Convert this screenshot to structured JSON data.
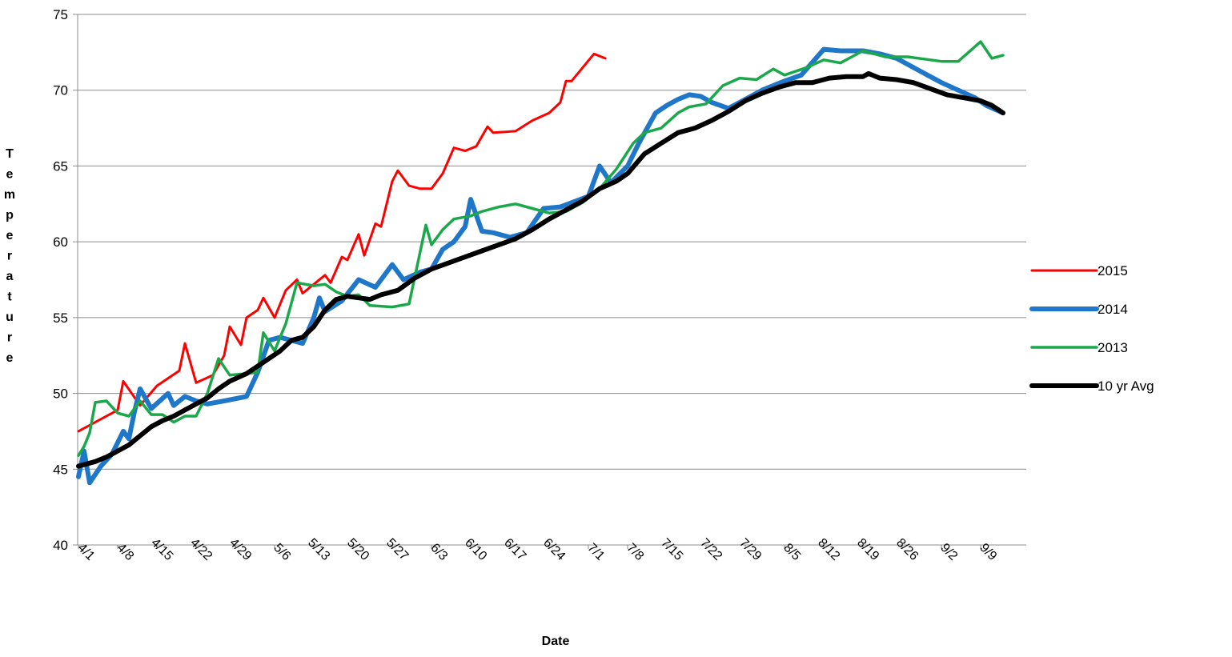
{
  "chart_data": {
    "type": "line",
    "title": "",
    "xlabel": "Date",
    "ylabel": "Temperature",
    "ylim": [
      40,
      75
    ],
    "yticks": [
      40,
      45,
      50,
      55,
      60,
      65,
      70,
      75
    ],
    "x_tick_labels": [
      "4/1",
      "4/8",
      "4/15",
      "4/22",
      "4/29",
      "5/6",
      "5/13",
      "5/20",
      "5/27",
      "6/3",
      "6/10",
      "6/17",
      "6/24",
      "7/1",
      "7/8",
      "7/15",
      "7/22",
      "7/29",
      "8/5",
      "8/12",
      "8/19",
      "8/26",
      "9/2",
      "9/9"
    ],
    "x_start_label": "4/1",
    "x_end_label": "9/13",
    "grid": "horizontal",
    "legend_position": "right",
    "series": [
      {
        "name": "2015",
        "color": "#ff0000",
        "points": [
          [
            "4/1",
            47.5
          ],
          [
            "4/8",
            48.9
          ],
          [
            "4/9",
            50.8
          ],
          [
            "4/12",
            49.2
          ],
          [
            "4/15",
            50.5
          ],
          [
            "4/19",
            51.5
          ],
          [
            "4/20",
            53.3
          ],
          [
            "4/22",
            50.7
          ],
          [
            "4/25",
            51.2
          ],
          [
            "4/27",
            52.5
          ],
          [
            "4/28",
            54.4
          ],
          [
            "4/30",
            53.2
          ],
          [
            "5/1",
            55.0
          ],
          [
            "5/3",
            55.5
          ],
          [
            "5/4",
            56.3
          ],
          [
            "5/6",
            55.0
          ],
          [
            "5/8",
            56.8
          ],
          [
            "5/10",
            57.5
          ],
          [
            "5/11",
            56.6
          ],
          [
            "5/13",
            57.2
          ],
          [
            "5/15",
            57.8
          ],
          [
            "5/16",
            57.3
          ],
          [
            "5/18",
            59.0
          ],
          [
            "5/19",
            58.8
          ],
          [
            "5/21",
            60.5
          ],
          [
            "5/22",
            59.1
          ],
          [
            "5/24",
            61.2
          ],
          [
            "5/25",
            61.0
          ],
          [
            "5/27",
            64.0
          ],
          [
            "5/28",
            64.7
          ],
          [
            "5/30",
            63.7
          ],
          [
            "6/1",
            63.5
          ],
          [
            "6/3",
            63.5
          ],
          [
            "6/5",
            64.5
          ],
          [
            "6/7",
            66.2
          ],
          [
            "6/9",
            66.0
          ],
          [
            "6/11",
            66.3
          ],
          [
            "6/13",
            67.6
          ],
          [
            "6/14",
            67.2
          ],
          [
            "6/18",
            67.3
          ],
          [
            "6/21",
            68.0
          ],
          [
            "6/24",
            68.5
          ],
          [
            "6/26",
            69.2
          ],
          [
            "6/27",
            70.6
          ],
          [
            "6/28",
            70.6
          ],
          [
            "6/30",
            71.5
          ],
          [
            "7/2",
            72.4
          ],
          [
            "7/4",
            72.1
          ]
        ]
      },
      {
        "name": "2014",
        "color": "#1f77c9",
        "points": [
          [
            "4/1",
            44.5
          ],
          [
            "4/2",
            46.2
          ],
          [
            "4/3",
            44.1
          ],
          [
            "4/5",
            45.2
          ],
          [
            "4/7",
            46.0
          ],
          [
            "4/9",
            47.5
          ],
          [
            "4/10",
            47.0
          ],
          [
            "4/11",
            48.8
          ],
          [
            "4/12",
            50.3
          ],
          [
            "4/14",
            49.0
          ],
          [
            "4/17",
            50.0
          ],
          [
            "4/18",
            49.2
          ],
          [
            "4/20",
            49.8
          ],
          [
            "4/22",
            49.5
          ],
          [
            "4/24",
            49.3
          ],
          [
            "4/27",
            49.5
          ],
          [
            "5/1",
            49.8
          ],
          [
            "5/3",
            51.4
          ],
          [
            "5/5",
            53.5
          ],
          [
            "5/7",
            53.7
          ],
          [
            "5/9",
            53.5
          ],
          [
            "5/11",
            53.3
          ],
          [
            "5/13",
            55.0
          ],
          [
            "5/14",
            56.3
          ],
          [
            "5/15",
            55.4
          ],
          [
            "5/18",
            56.1
          ],
          [
            "5/21",
            57.5
          ],
          [
            "5/24",
            57.0
          ],
          [
            "5/27",
            58.5
          ],
          [
            "5/29",
            57.5
          ],
          [
            "6/1",
            58.0
          ],
          [
            "6/3",
            58.2
          ],
          [
            "6/5",
            59.5
          ],
          [
            "6/7",
            60.0
          ],
          [
            "6/9",
            61.0
          ],
          [
            "6/10",
            62.8
          ],
          [
            "6/12",
            60.7
          ],
          [
            "6/14",
            60.6
          ],
          [
            "6/17",
            60.3
          ],
          [
            "6/20",
            60.6
          ],
          [
            "6/23",
            62.2
          ],
          [
            "6/26",
            62.3
          ],
          [
            "7/1",
            63.0
          ],
          [
            "7/3",
            65.0
          ],
          [
            "7/5",
            63.9
          ],
          [
            "7/8",
            65.0
          ],
          [
            "7/10",
            66.5
          ],
          [
            "7/13",
            68.5
          ],
          [
            "7/15",
            69.0
          ],
          [
            "7/17",
            69.4
          ],
          [
            "7/19",
            69.7
          ],
          [
            "7/21",
            69.6
          ],
          [
            "7/23",
            69.2
          ],
          [
            "7/26",
            68.8
          ],
          [
            "7/29",
            69.4
          ],
          [
            "8/1",
            70.0
          ],
          [
            "8/5",
            70.6
          ],
          [
            "8/8",
            71.0
          ],
          [
            "8/12",
            72.7
          ],
          [
            "8/15",
            72.6
          ],
          [
            "8/19",
            72.6
          ],
          [
            "8/22",
            72.4
          ],
          [
            "8/25",
            72.1
          ],
          [
            "8/29",
            71.3
          ],
          [
            "9/2",
            70.5
          ],
          [
            "9/5",
            70.0
          ],
          [
            "9/8",
            69.5
          ],
          [
            "9/10",
            69.0
          ],
          [
            "9/13",
            68.5
          ]
        ]
      },
      {
        "name": "2013",
        "color": "#1aa84a",
        "points": [
          [
            "4/1",
            45.9
          ],
          [
            "4/2",
            46.5
          ],
          [
            "4/3",
            47.4
          ],
          [
            "4/4",
            49.4
          ],
          [
            "4/6",
            49.5
          ],
          [
            "4/8",
            48.7
          ],
          [
            "4/10",
            48.5
          ],
          [
            "4/12",
            49.5
          ],
          [
            "4/14",
            48.6
          ],
          [
            "4/16",
            48.6
          ],
          [
            "4/18",
            48.1
          ],
          [
            "4/20",
            48.5
          ],
          [
            "4/22",
            48.5
          ],
          [
            "4/24",
            50.0
          ],
          [
            "4/26",
            52.3
          ],
          [
            "4/28",
            51.2
          ],
          [
            "5/1",
            51.3
          ],
          [
            "5/3",
            51.4
          ],
          [
            "5/4",
            54.0
          ],
          [
            "5/6",
            52.8
          ],
          [
            "5/8",
            54.6
          ],
          [
            "5/10",
            57.3
          ],
          [
            "5/13",
            57.1
          ],
          [
            "5/15",
            57.2
          ],
          [
            "5/17",
            56.7
          ],
          [
            "5/19",
            56.4
          ],
          [
            "5/21",
            56.5
          ],
          [
            "5/23",
            55.8
          ],
          [
            "5/27",
            55.7
          ],
          [
            "5/30",
            55.9
          ],
          [
            "6/2",
            61.1
          ],
          [
            "6/3",
            59.8
          ],
          [
            "6/5",
            60.8
          ],
          [
            "6/7",
            61.5
          ],
          [
            "6/10",
            61.7
          ],
          [
            "6/12",
            62.0
          ],
          [
            "6/15",
            62.3
          ],
          [
            "6/18",
            62.5
          ],
          [
            "6/21",
            62.2
          ],
          [
            "6/24",
            61.9
          ],
          [
            "6/27",
            62.0
          ],
          [
            "6/30",
            62.6
          ],
          [
            "7/3",
            63.5
          ],
          [
            "7/6",
            64.8
          ],
          [
            "7/9",
            66.5
          ],
          [
            "7/11",
            67.2
          ],
          [
            "7/14",
            67.5
          ],
          [
            "7/17",
            68.5
          ],
          [
            "7/19",
            68.9
          ],
          [
            "7/22",
            69.1
          ],
          [
            "7/25",
            70.3
          ],
          [
            "7/28",
            70.8
          ],
          [
            "7/31",
            70.7
          ],
          [
            "8/3",
            71.4
          ],
          [
            "8/5",
            71.0
          ],
          [
            "8/9",
            71.5
          ],
          [
            "8/12",
            72.0
          ],
          [
            "8/15",
            71.8
          ],
          [
            "8/19",
            72.6
          ],
          [
            "8/23",
            72.2
          ],
          [
            "8/27",
            72.2
          ],
          [
            "8/31",
            72.0
          ],
          [
            "9/2",
            71.9
          ],
          [
            "9/5",
            71.9
          ],
          [
            "9/9",
            73.2
          ],
          [
            "9/11",
            72.1
          ],
          [
            "9/13",
            72.3
          ]
        ]
      },
      {
        "name": "10 yr Avg",
        "color": "#000000",
        "points": [
          [
            "4/1",
            45.2
          ],
          [
            "4/2",
            45.3
          ],
          [
            "4/4",
            45.5
          ],
          [
            "4/6",
            45.8
          ],
          [
            "4/8",
            46.2
          ],
          [
            "4/10",
            46.6
          ],
          [
            "4/12",
            47.2
          ],
          [
            "4/14",
            47.8
          ],
          [
            "4/16",
            48.2
          ],
          [
            "4/18",
            48.5
          ],
          [
            "4/20",
            48.9
          ],
          [
            "4/22",
            49.3
          ],
          [
            "4/24",
            49.7
          ],
          [
            "4/26",
            50.3
          ],
          [
            "4/28",
            50.8
          ],
          [
            "5/1",
            51.3
          ],
          [
            "5/3",
            51.8
          ],
          [
            "5/5",
            52.3
          ],
          [
            "5/7",
            52.8
          ],
          [
            "5/9",
            53.5
          ],
          [
            "5/11",
            53.7
          ],
          [
            "5/13",
            54.4
          ],
          [
            "5/15",
            55.5
          ],
          [
            "5/17",
            56.2
          ],
          [
            "5/19",
            56.4
          ],
          [
            "5/21",
            56.3
          ],
          [
            "5/23",
            56.2
          ],
          [
            "5/25",
            56.5
          ],
          [
            "5/28",
            56.8
          ],
          [
            "5/31",
            57.6
          ],
          [
            "6/3",
            58.2
          ],
          [
            "6/6",
            58.6
          ],
          [
            "6/9",
            59.0
          ],
          [
            "6/12",
            59.4
          ],
          [
            "6/15",
            59.8
          ],
          [
            "6/18",
            60.2
          ],
          [
            "6/21",
            60.8
          ],
          [
            "6/24",
            61.5
          ],
          [
            "6/27",
            62.1
          ],
          [
            "6/30",
            62.7
          ],
          [
            "7/3",
            63.5
          ],
          [
            "7/6",
            64.0
          ],
          [
            "7/8",
            64.5
          ],
          [
            "7/11",
            65.8
          ],
          [
            "7/14",
            66.5
          ],
          [
            "7/17",
            67.2
          ],
          [
            "7/20",
            67.5
          ],
          [
            "7/23",
            68.0
          ],
          [
            "7/26",
            68.6
          ],
          [
            "7/29",
            69.3
          ],
          [
            "8/1",
            69.8
          ],
          [
            "8/4",
            70.2
          ],
          [
            "8/7",
            70.5
          ],
          [
            "8/10",
            70.5
          ],
          [
            "8/13",
            70.8
          ],
          [
            "8/16",
            70.9
          ],
          [
            "8/19",
            70.9
          ],
          [
            "8/20",
            71.1
          ],
          [
            "8/22",
            70.8
          ],
          [
            "8/25",
            70.7
          ],
          [
            "8/28",
            70.5
          ],
          [
            "8/31",
            70.1
          ],
          [
            "9/3",
            69.7
          ],
          [
            "9/6",
            69.5
          ],
          [
            "9/9",
            69.3
          ],
          [
            "9/11",
            69.0
          ],
          [
            "9/13",
            68.5
          ]
        ]
      }
    ]
  }
}
